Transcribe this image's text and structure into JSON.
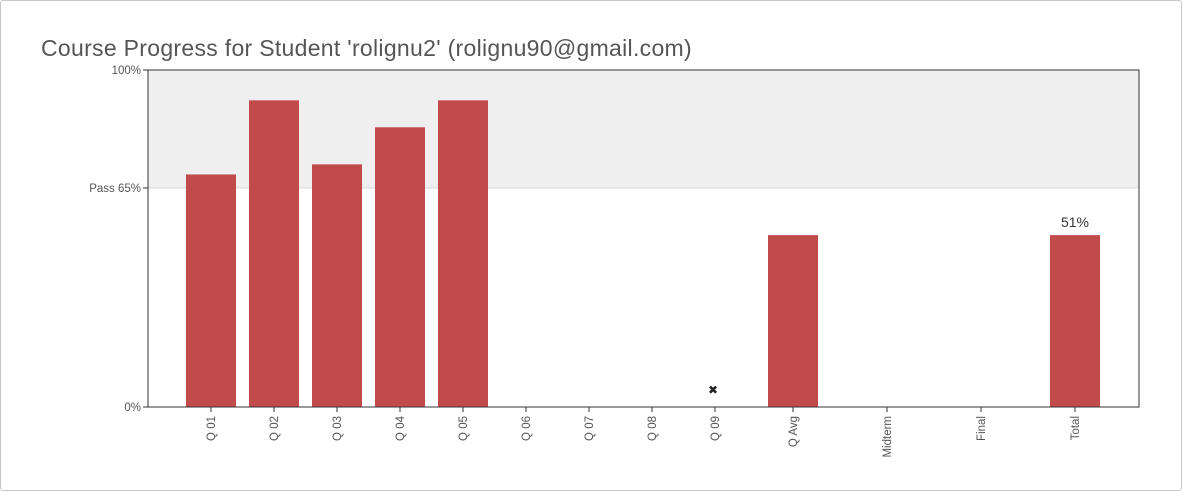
{
  "page": {
    "title": "Course Progress for Student 'rolignu2' (rolignu90@gmail.com)"
  },
  "chart_data": {
    "type": "bar",
    "title": "Course Progress for Student 'rolignu2' (rolignu90@gmail.com)",
    "ylim": [
      0,
      100
    ],
    "y_tick_labels": [
      {
        "value": 100,
        "label": "100%"
      },
      {
        "value": 65,
        "label": "Pass 65%"
      },
      {
        "value": 0,
        "label": "0%"
      }
    ],
    "pass_threshold": 65,
    "categories": [
      "Q 01",
      "Q 02",
      "Q 03",
      "Q 04",
      "Q 05",
      "Q 06",
      "Q 07",
      "Q 08",
      "Q 09",
      "Q Avg",
      "Midterm",
      "Final",
      "Total"
    ],
    "values": [
      69,
      91,
      72,
      83,
      91,
      0,
      0,
      0,
      0,
      51,
      0,
      0,
      51
    ],
    "bar_labels": [
      "",
      "",
      "",
      "",
      "",
      "",
      "",
      "",
      "",
      "",
      "",
      "",
      "51%"
    ],
    "markers": [
      "",
      "",
      "",
      "",
      "",
      "",
      "",
      "",
      "✖",
      "",
      "",
      "",
      ""
    ],
    "colors": {
      "bar": "#c14a4b",
      "pass_band": "#efefef",
      "axis": "#333333"
    },
    "grid": false,
    "legend": "none"
  }
}
